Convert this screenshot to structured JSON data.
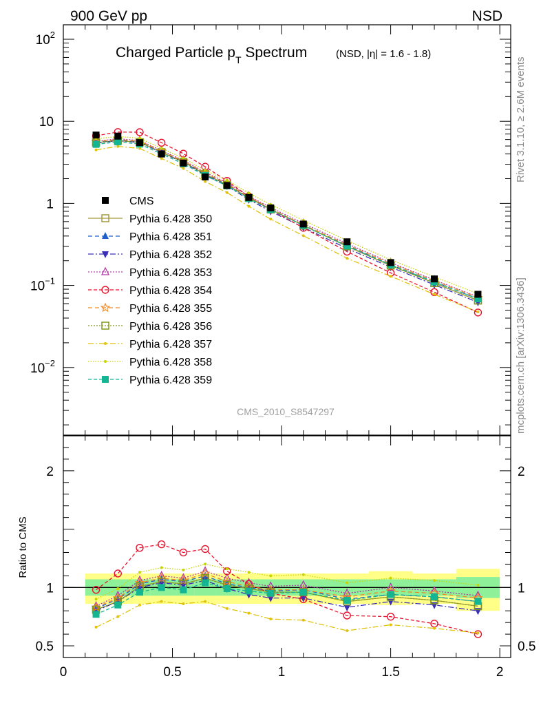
{
  "header": {
    "energy": "900 GeV pp",
    "process": "NSD"
  },
  "side_labels": {
    "rivet": "Rivet 3.1.10, ≥ 2.6M events",
    "site": "mcplots.cern.ch [arXiv:1306.3436]"
  },
  "chart_data": {
    "type": "line",
    "title_main": "Charged Particle p",
    "title_sub": "T",
    "title_tail": " Spectrum",
    "title_extra": "(NSD, |η| = 1.6 - 1.8)",
    "analysis_id": "CMS_2010_S8547297",
    "xlim": [
      0,
      2.05
    ],
    "ylim_main": [
      0.0015,
      150
    ],
    "ylim_ratio": [
      0.4,
      2.3
    ],
    "ylabel_ratio": "Ratio to CMS",
    "x_tick_labels": [
      "0",
      "0.5",
      "1",
      "1.5",
      "2"
    ],
    "y_main_tick_labels": [
      {
        "base": "10",
        "exp": "2",
        "v": 100
      },
      {
        "base": "10",
        "exp": "",
        "v": 10
      },
      {
        "base": "1",
        "exp": "",
        "v": 1
      },
      {
        "base": "10",
        "exp": "−1",
        "v": 0.1
      },
      {
        "base": "10",
        "exp": "−2",
        "v": 0.01
      }
    ],
    "y_ratio_tick_labels": [
      {
        "label": "2",
        "v": 2
      },
      {
        "label": "1",
        "v": 1
      },
      {
        "label": "0.5",
        "v": 0.5
      }
    ],
    "x": [
      0.15,
      0.25,
      0.35,
      0.45,
      0.55,
      0.65,
      0.75,
      0.85,
      0.95,
      1.1,
      1.3,
      1.5,
      1.7,
      1.9
    ],
    "data": {
      "name": "CMS",
      "values": [
        6.8,
        6.6,
        5.5,
        4.0,
        3.1,
        2.1,
        1.65,
        1.18,
        0.88,
        0.56,
        0.34,
        0.19,
        0.12,
        0.078
      ]
    },
    "ratio_bands": [
      {
        "x0": 0.1,
        "x1": 0.2,
        "y_lo": 0.86,
        "y_hi": 1.12,
        "g_lo": 0.93,
        "g_hi": 1.07
      },
      {
        "x0": 0.2,
        "x1": 0.3,
        "y_lo": 0.86,
        "y_hi": 1.12,
        "g_lo": 0.93,
        "g_hi": 1.07
      },
      {
        "x0": 0.3,
        "x1": 0.4,
        "y_lo": 0.86,
        "y_hi": 1.12,
        "g_lo": 0.93,
        "g_hi": 1.07
      },
      {
        "x0": 0.4,
        "x1": 0.5,
        "y_lo": 0.86,
        "y_hi": 1.12,
        "g_lo": 0.93,
        "g_hi": 1.07
      },
      {
        "x0": 0.5,
        "x1": 0.6,
        "y_lo": 0.86,
        "y_hi": 1.12,
        "g_lo": 0.93,
        "g_hi": 1.07
      },
      {
        "x0": 0.6,
        "x1": 0.7,
        "y_lo": 0.86,
        "y_hi": 1.12,
        "g_lo": 0.93,
        "g_hi": 1.07
      },
      {
        "x0": 0.7,
        "x1": 0.8,
        "y_lo": 0.86,
        "y_hi": 1.12,
        "g_lo": 0.93,
        "g_hi": 1.07
      },
      {
        "x0": 0.8,
        "x1": 0.9,
        "y_lo": 0.86,
        "y_hi": 1.12,
        "g_lo": 0.93,
        "g_hi": 1.07
      },
      {
        "x0": 0.9,
        "x1": 1.0,
        "y_lo": 0.86,
        "y_hi": 1.12,
        "g_lo": 0.93,
        "g_hi": 1.07
      },
      {
        "x0": 1.0,
        "x1": 1.2,
        "y_lo": 0.86,
        "y_hi": 1.12,
        "g_lo": 0.93,
        "g_hi": 1.07
      },
      {
        "x0": 1.2,
        "x1": 1.4,
        "y_lo": 0.86,
        "y_hi": 1.12,
        "g_lo": 0.93,
        "g_hi": 1.07
      },
      {
        "x0": 1.4,
        "x1": 1.6,
        "y_lo": 0.85,
        "y_hi": 1.14,
        "g_lo": 0.93,
        "g_hi": 1.07
      },
      {
        "x0": 1.6,
        "x1": 1.8,
        "y_lo": 0.86,
        "y_hi": 1.12,
        "g_lo": 0.93,
        "g_hi": 1.07
      },
      {
        "x0": 1.8,
        "x1": 2.0,
        "y_lo": 0.8,
        "y_hi": 1.16,
        "g_lo": 0.91,
        "g_hi": 1.09
      }
    ],
    "series": [
      {
        "name": "Pythia 6.428 350",
        "color": "#a39a3d",
        "marker": "square-open",
        "dash": "",
        "ratio": [
          0.81,
          0.88,
          1.01,
          1.05,
          1.03,
          1.08,
          1.02,
          0.99,
          0.96,
          0.96,
          0.88,
          0.92,
          0.89,
          0.84
        ]
      },
      {
        "name": "Pythia 6.428 351",
        "color": "#1f5fc9",
        "marker": "triangle-up",
        "dash": "6,4",
        "ratio": [
          0.82,
          0.9,
          1.03,
          1.07,
          1.05,
          1.1,
          1.03,
          1.0,
          0.97,
          0.98,
          0.9,
          0.94,
          0.92,
          0.88
        ]
      },
      {
        "name": "Pythia 6.428 352",
        "color": "#3b2fb8",
        "marker": "triangle-down",
        "dash": "8,3,2,3",
        "ratio": [
          0.8,
          0.88,
          1.0,
          1.04,
          1.02,
          1.06,
          0.99,
          0.94,
          0.91,
          0.91,
          0.83,
          0.88,
          0.85,
          0.8
        ]
      },
      {
        "name": "Pythia 6.428 353",
        "color": "#b33aa8",
        "marker": "triangle-open",
        "dash": "2,2",
        "ratio": [
          0.84,
          0.93,
          1.06,
          1.1,
          1.08,
          1.14,
          1.08,
          1.04,
          1.01,
          1.02,
          0.95,
          1.0,
          0.97,
          0.93
        ]
      },
      {
        "name": "Pythia 6.428 354",
        "color": "#e8112d",
        "marker": "circle-open",
        "dash": "5,3",
        "ratio": [
          0.98,
          1.12,
          1.34,
          1.37,
          1.3,
          1.33,
          1.14,
          1.03,
          0.95,
          0.9,
          0.76,
          0.75,
          0.69,
          0.6
        ]
      },
      {
        "name": "Pythia 6.428 355",
        "color": "#f08a24",
        "marker": "star-open",
        "dash": "6,4",
        "ratio": [
          0.83,
          0.91,
          1.04,
          1.08,
          1.06,
          1.12,
          1.05,
          1.01,
          0.98,
          0.98,
          0.92,
          0.97,
          0.95,
          0.91
        ]
      },
      {
        "name": "Pythia 6.428 356",
        "color": "#7f9a1c",
        "marker": "square-open",
        "dash": "2,2",
        "ratio": [
          0.81,
          0.88,
          1.01,
          1.05,
          1.03,
          1.08,
          1.02,
          0.99,
          0.96,
          0.96,
          0.88,
          0.92,
          0.89,
          0.84
        ]
      },
      {
        "name": "Pythia 6.428 357",
        "color": "#e0c20c",
        "marker": "dot",
        "dash": "8,3,2,3",
        "ratio": [
          0.66,
          0.75,
          0.85,
          0.88,
          0.86,
          0.88,
          0.82,
          0.78,
          0.73,
          0.72,
          0.63,
          0.68,
          0.65,
          0.61
        ]
      },
      {
        "name": "Pythia 6.428 358",
        "color": "#c8d400",
        "marker": "dot",
        "dash": "1.5,2",
        "ratio": [
          0.9,
          0.99,
          1.13,
          1.17,
          1.15,
          1.2,
          1.16,
          1.13,
          1.1,
          1.11,
          1.04,
          1.08,
          1.06,
          1.02
        ]
      },
      {
        "name": "Pythia 6.428 359",
        "color": "#14b593",
        "marker": "square",
        "dash": "5,3",
        "ratio": [
          0.77,
          0.85,
          0.96,
          1.0,
          0.98,
          1.04,
          0.99,
          0.97,
          0.95,
          0.96,
          0.89,
          0.94,
          0.92,
          0.88
        ]
      }
    ]
  }
}
